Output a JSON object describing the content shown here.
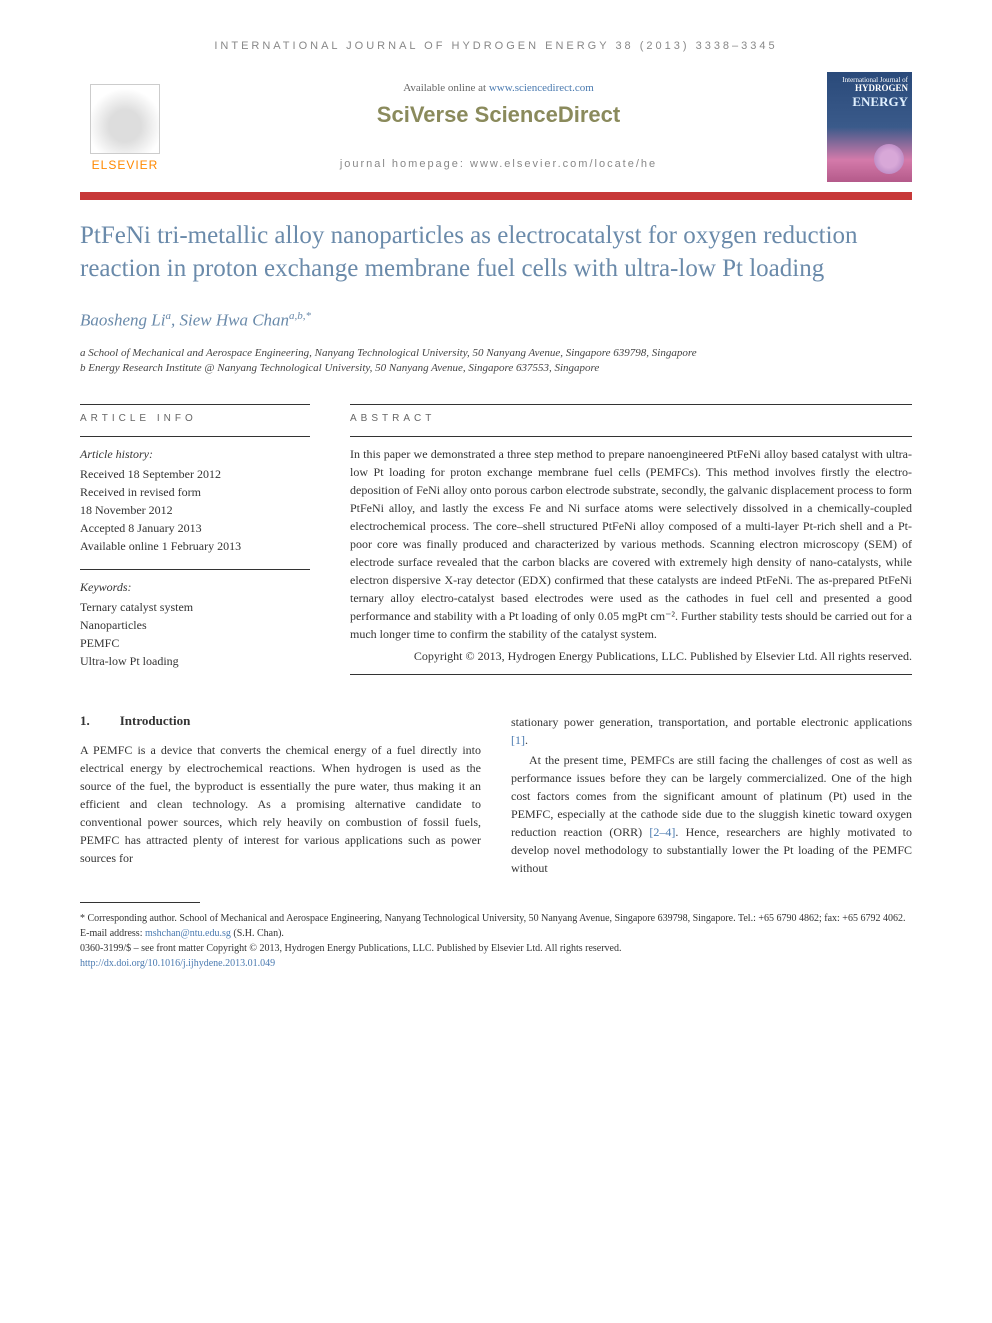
{
  "header": {
    "running_head": "INTERNATIONAL JOURNAL OF HYDROGEN ENERGY 38 (2013) 3338–3345"
  },
  "top": {
    "available_prefix": "Available online at ",
    "available_link": "www.sciencedirect.com",
    "brand": "SciVerse ScienceDirect",
    "homepage_prefix": "journal homepage: ",
    "homepage_url": "www.elsevier.com/locate/he",
    "elsevier": "ELSEVIER",
    "cover_journal": "HYDROGEN",
    "cover_energy": "ENERGY",
    "cover_top": "International Journal of"
  },
  "article": {
    "title": "PtFeNi tri-metallic alloy nanoparticles as electrocatalyst for oxygen reduction reaction in proton exchange membrane fuel cells with ultra-low Pt loading",
    "authors_html": "Baosheng Li<sup>a</sup>, Siew Hwa Chan<sup>a,b,*</sup>",
    "affil_a": "a School of Mechanical and Aerospace Engineering, Nanyang Technological University, 50 Nanyang Avenue, Singapore 639798, Singapore",
    "affil_b": "b Energy Research Institute @ Nanyang Technological University, 50 Nanyang Avenue, Singapore 637553, Singapore"
  },
  "info": {
    "heading": "ARTICLE INFO",
    "history_label": "Article history:",
    "received": "Received 18 September 2012",
    "revised_label": "Received in revised form",
    "revised_date": "18 November 2012",
    "accepted": "Accepted 8 January 2013",
    "online": "Available online 1 February 2013",
    "keywords_label": "Keywords:",
    "kw1": "Ternary catalyst system",
    "kw2": "Nanoparticles",
    "kw3": "PEMFC",
    "kw4": "Ultra-low Pt loading"
  },
  "abstract": {
    "heading": "ABSTRACT",
    "text": "In this paper we demonstrated a three step method to prepare nanoengineered PtFeNi alloy based catalyst with ultra-low Pt loading for proton exchange membrane fuel cells (PEMFCs). This method involves firstly the electro-deposition of FeNi alloy onto porous carbon electrode substrate, secondly, the galvanic displacement process to form PtFeNi alloy, and lastly the excess Fe and Ni surface atoms were selectively dissolved in a chemically-coupled electrochemical process. The core–shell structured PtFeNi alloy composed of a multi-layer Pt-rich shell and a Pt-poor core was finally produced and characterized by various methods. Scanning electron microscopy (SEM) of electrode surface revealed that the carbon blacks are covered with extremely high density of nano-catalysts, while electron dispersive X-ray detector (EDX) confirmed that these catalysts are indeed PtFeNi. The as-prepared PtFeNi ternary alloy electro-catalyst based electrodes were used as the cathodes in fuel cell and presented a good performance and stability with a Pt loading of only 0.05 mgPt cm⁻². Further stability tests should be carried out for a much longer time to confirm the stability of the catalyst system.",
    "copyright": "Copyright © 2013, Hydrogen Energy Publications, LLC. Published by Elsevier Ltd. All rights reserved."
  },
  "body": {
    "section_num": "1.",
    "section_title": "Introduction",
    "col1": "A PEMFC is a device that converts the chemical energy of a fuel directly into electrical energy by electrochemical reactions. When hydrogen is used as the source of the fuel, the byproduct is essentially the pure water, thus making it an efficient and clean technology. As a promising alternative candidate to conventional power sources, which rely heavily on combustion of fossil fuels, PEMFC has attracted plenty of interest for various applications such as power sources for",
    "col2_p1": "stationary power generation, transportation, and portable electronic applications ",
    "col2_ref1": "[1]",
    "col2_p1_end": ".",
    "col2_p2": "At the present time, PEMFCs are still facing the challenges of cost as well as performance issues before they can be largely commercialized. One of the high cost factors comes from the significant amount of platinum (Pt) used in the PEMFC, especially at the cathode side due to the sluggish kinetic toward oxygen reduction reaction (ORR) ",
    "col2_ref2": "[2–4]",
    "col2_p2_end": ". Hence, researchers are highly motivated to develop novel methodology to substantially lower the Pt loading of the PEMFC without"
  },
  "footer": {
    "corresponding": "* Corresponding author. School of Mechanical and Aerospace Engineering, Nanyang Technological University, 50 Nanyang Avenue, Singapore 639798, Singapore. Tel.: +65 6790 4862; fax: +65 6792 4062.",
    "email_label": "E-mail address: ",
    "email": "mshchan@ntu.edu.sg",
    "email_suffix": " (S.H. Chan).",
    "issn": "0360-3199/$ – see front matter Copyright © 2013, Hydrogen Energy Publications, LLC. Published by Elsevier Ltd. All rights reserved.",
    "doi": "http://dx.doi.org/10.1016/j.ijhydene.2013.01.049"
  }
}
